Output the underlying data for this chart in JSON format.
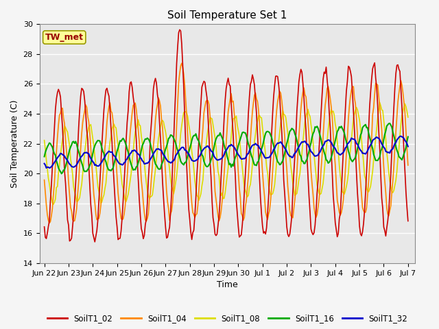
{
  "title": "Soil Temperature Set 1",
  "xlabel": "Time",
  "ylabel": "Soil Temperature (C)",
  "ylim": [
    14,
    30
  ],
  "background_color": "#e8e8e8",
  "fig_background": "#f5f5f5",
  "annotation_text": "TW_met",
  "annotation_color": "#990000",
  "annotation_bg": "#ffff99",
  "annotation_border": "#999900",
  "series": {
    "SoilT1_02": {
      "color": "#cc0000",
      "linewidth": 1.2,
      "zorder": 3
    },
    "SoilT1_04": {
      "color": "#ff8800",
      "linewidth": 1.2,
      "zorder": 3
    },
    "SoilT1_08": {
      "color": "#dddd00",
      "linewidth": 1.2,
      "zorder": 3
    },
    "SoilT1_16": {
      "color": "#00aa00",
      "linewidth": 1.5,
      "zorder": 4
    },
    "SoilT1_32": {
      "color": "#0000cc",
      "linewidth": 1.5,
      "zorder": 5
    }
  },
  "xtick_labels": [
    "Jun 22",
    "Jun 23",
    "Jun 24",
    "Jun 25",
    "Jun 26",
    "Jun 27",
    "Jun 28",
    "Jun 29",
    "Jun 30",
    "Jul 1",
    "Jul 2",
    "Jul 3",
    "Jul 4",
    "Jul 5",
    "Jul 6",
    "Jul 7"
  ],
  "ytick_values": [
    14,
    16,
    18,
    20,
    22,
    24,
    26,
    28,
    30
  ],
  "grid_color": "#ffffff",
  "tick_fontsize": 8,
  "label_fontsize": 9,
  "title_fontsize": 11
}
